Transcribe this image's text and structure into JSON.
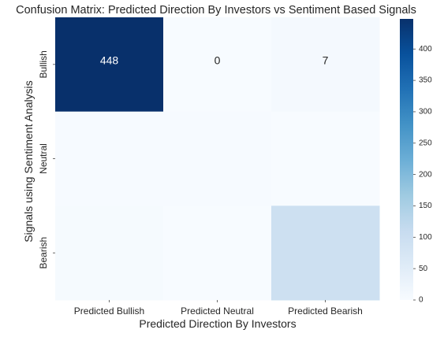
{
  "chart_data": {
    "type": "heatmap",
    "title": "Confusion Matrix: Predicted Direction By Investors vs Sentiment Based Signals",
    "xlabel": "Predicted Direction By Investors",
    "ylabel": "Signals using Sentiment Analysis",
    "x_categories": [
      "Predicted Bullish",
      "Predicted Neutral",
      "Predicted Bearish"
    ],
    "y_categories": [
      "Bullish",
      "Neutral",
      "Bearish"
    ],
    "matrix": [
      [
        448,
        0,
        7
      ],
      [
        3,
        2,
        1
      ],
      [
        5,
        1,
        95
      ]
    ],
    "annotations": [
      [
        "448",
        "0",
        "7"
      ],
      [
        "",
        "",
        ""
      ],
      [
        "",
        "",
        ""
      ]
    ],
    "colorbar": {
      "colormap": "Blues",
      "range": [
        0,
        448
      ],
      "ticks": [
        0,
        50,
        100,
        150,
        200,
        250,
        300,
        350,
        400
      ],
      "tick_labels": [
        "0",
        "50",
        "100",
        "150",
        "200",
        "250",
        "300",
        "350",
        "400"
      ]
    },
    "colors": {
      "cmap_low": "#f7fbff",
      "cmap_high": "#08306b",
      "annotation_light": "#ffffff",
      "annotation_dark": "#262626"
    },
    "grid": false,
    "legend": "colorbar-right"
  }
}
